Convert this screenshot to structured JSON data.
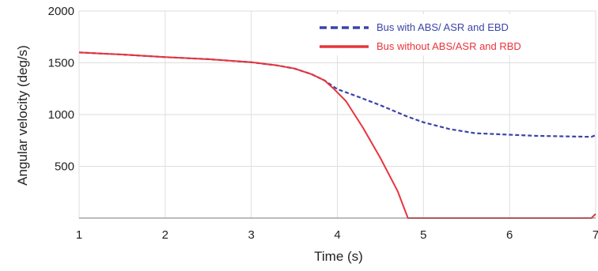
{
  "chart_data": {
    "type": "line",
    "title": "",
    "xlabel": "Time (s)",
    "ylabel": "Angular velocity (deg/s)",
    "xlim": [
      1,
      7
    ],
    "ylim": [
      0,
      2000
    ],
    "xticks": [
      1,
      2,
      3,
      4,
      5,
      6,
      7
    ],
    "yticks": [
      500,
      1000,
      1500,
      2000
    ],
    "grid": true,
    "legend_position": "top-right",
    "series": [
      {
        "name": "Bus with ABS/ ASR and EBD",
        "color": "#3b44a8",
        "style": "dashed",
        "x": [
          1,
          1.5,
          2,
          2.5,
          3,
          3.3,
          3.5,
          3.7,
          3.85,
          4.0,
          4.2,
          4.5,
          4.8,
          5.0,
          5.3,
          5.6,
          6.0,
          6.3,
          6.6,
          6.95,
          7.0
        ],
        "y": [
          1600,
          1580,
          1555,
          1535,
          1505,
          1475,
          1445,
          1390,
          1330,
          1245,
          1185,
          1090,
          985,
          925,
          860,
          820,
          805,
          795,
          790,
          785,
          800
        ]
      },
      {
        "name": "Bus without ABS/ASR and RBD",
        "color": "#e8343c",
        "style": "solid",
        "x": [
          1,
          1.5,
          2,
          2.5,
          3,
          3.3,
          3.5,
          3.7,
          3.85,
          3.95,
          4.1,
          4.3,
          4.5,
          4.7,
          4.82,
          5.0,
          5.5,
          6.0,
          6.5,
          6.95,
          7.0
        ],
        "y": [
          1600,
          1580,
          1555,
          1535,
          1505,
          1475,
          1445,
          1390,
          1330,
          1255,
          1130,
          870,
          580,
          260,
          0,
          0,
          0,
          0,
          0,
          0,
          40
        ]
      }
    ]
  }
}
